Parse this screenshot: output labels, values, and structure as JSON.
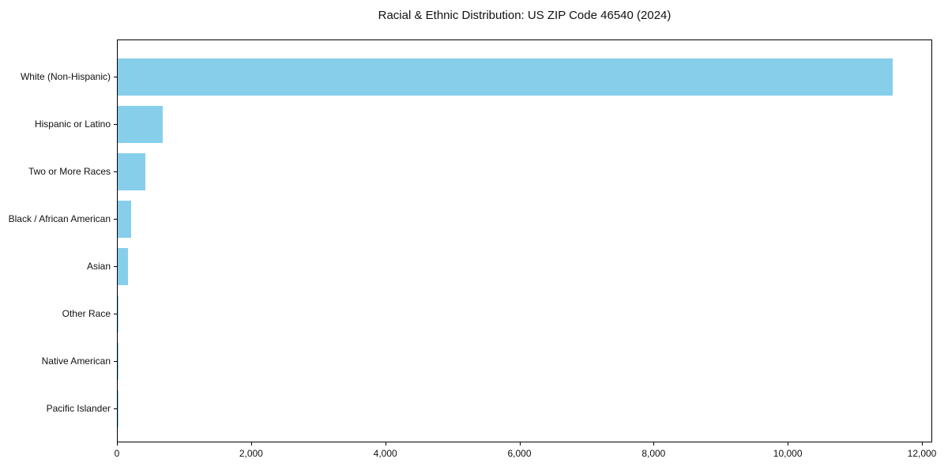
{
  "chart_data": {
    "type": "bar",
    "orientation": "horizontal",
    "title": "Racial & Ethnic Distribution: US ZIP Code 46540 (2024)",
    "categories": [
      "White (Non-Hispanic)",
      "Hispanic or Latino",
      "Two or More Races",
      "Black / African American",
      "Asian",
      "Other Race",
      "Native American",
      "Pacific Islander"
    ],
    "values": [
      11550,
      670,
      410,
      200,
      150,
      12,
      8,
      3
    ],
    "xlabel": "",
    "ylabel": "",
    "xlim": [
      0,
      12000
    ],
    "x_ticks": [
      0,
      2000,
      4000,
      6000,
      8000,
      10000,
      12000
    ],
    "x_tick_labels": [
      "0",
      "2,000",
      "4,000",
      "6,000",
      "8,000",
      "10,000",
      "12,000"
    ],
    "grid": false,
    "legend": false,
    "bar_color": "#87CEEB"
  },
  "colors": {
    "bar": "#87CEEB",
    "axis": "#000000",
    "background": "#FFFFFF",
    "text": "#111111"
  }
}
